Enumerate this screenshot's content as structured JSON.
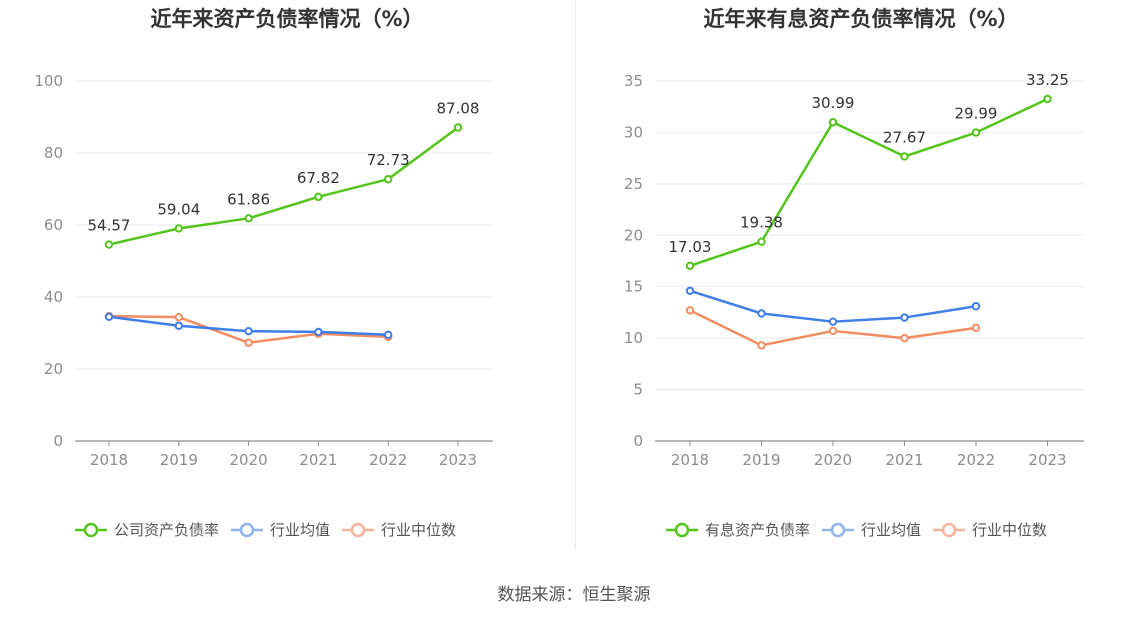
{
  "source_label": "数据来源：恒生聚源",
  "chart_data": [
    {
      "type": "line",
      "title": "近年来资产负债率情况（%）",
      "x": [
        "2018",
        "2019",
        "2020",
        "2021",
        "2022",
        "2023"
      ],
      "ylim": [
        0,
        100
      ],
      "yticks": [
        0,
        20,
        40,
        60,
        80,
        100
      ],
      "grid": true,
      "legend_position": "bottom",
      "series": [
        {
          "name": "公司资产负债率",
          "color": "#52c41a",
          "labels": true,
          "values": [
            54.57,
            59.04,
            61.86,
            67.82,
            72.73,
            87.08
          ]
        },
        {
          "name": "行业均值",
          "color": "#3f7ee8",
          "labels": false,
          "values": [
            34.5,
            32.0,
            30.5,
            30.3,
            29.5,
            null
          ]
        },
        {
          "name": "行业中位数",
          "color": "#f28c61",
          "labels": false,
          "values": [
            34.7,
            34.4,
            27.3,
            29.8,
            28.9,
            null
          ]
        }
      ]
    },
    {
      "type": "line",
      "title": "近年来有息资产负债率情况（%）",
      "x": [
        "2018",
        "2019",
        "2020",
        "2021",
        "2022",
        "2023"
      ],
      "ylim": [
        0,
        35
      ],
      "yticks": [
        0,
        5,
        10,
        15,
        20,
        25,
        30,
        35
      ],
      "grid": true,
      "legend_position": "bottom",
      "series": [
        {
          "name": "有息资产负债率",
          "color": "#52c41a",
          "labels": true,
          "values": [
            17.03,
            19.38,
            30.99,
            27.67,
            29.99,
            33.25
          ]
        },
        {
          "name": "行业均值",
          "color": "#3f7ee8",
          "labels": false,
          "values": [
            14.6,
            12.4,
            11.6,
            12.0,
            13.1,
            null
          ]
        },
        {
          "name": "行业中位数",
          "color": "#f28c61",
          "labels": false,
          "values": [
            12.7,
            9.3,
            10.7,
            10.0,
            11.0,
            null
          ]
        }
      ]
    }
  ]
}
